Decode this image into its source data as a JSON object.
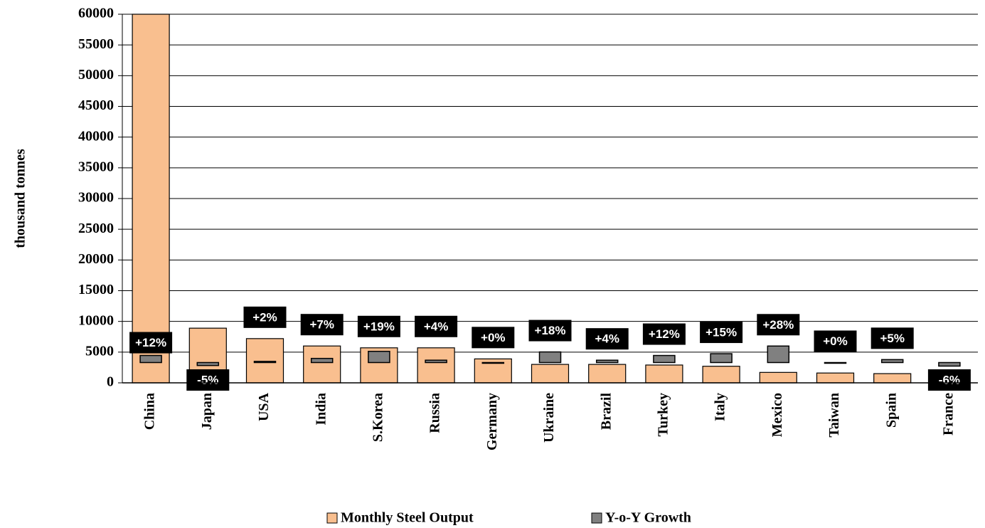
{
  "chart_data": {
    "type": "bar",
    "ylabel": "thousand  tonnes",
    "categories": [
      "China",
      "Japan",
      "USA",
      "India",
      "S.Korea",
      "Russia",
      "Germany",
      "Ukraine",
      "Brazil",
      "Turkey",
      "Italy",
      "Mexico",
      "Taiwan",
      "Spain",
      "France"
    ],
    "series": [
      {
        "name": "Monthly Steel Output",
        "color": "#f9bf8f",
        "values": [
          60000,
          8900,
          7200,
          6000,
          5700,
          5700,
          3900,
          3000,
          3000,
          2900,
          2700,
          1700,
          1600,
          1500,
          1300
        ]
      },
      {
        "name": "Y-o-Y Growth",
        "color": "#808080",
        "axis": "y2",
        "values": [
          12,
          -5,
          2,
          7,
          19,
          4,
          0,
          18,
          4,
          12,
          15,
          28,
          0,
          5,
          -6
        ],
        "value_labels": [
          "+12%",
          "-5%",
          "+2%",
          "+7%",
          "+19%",
          "+4%",
          "+0%",
          "+18%",
          "+4%",
          "+12%",
          "+15%",
          "+28%",
          "+0%",
          "+5%",
          "-6%"
        ]
      }
    ],
    "ylim": [
      0,
      60000
    ],
    "yticks": [
      0,
      5000,
      10000,
      15000,
      20000,
      25000,
      30000,
      35000,
      40000,
      45000,
      50000,
      55000,
      60000
    ],
    "y2lim": [
      -34.4,
      590.6
    ],
    "grid": true,
    "legend": "bottom"
  }
}
